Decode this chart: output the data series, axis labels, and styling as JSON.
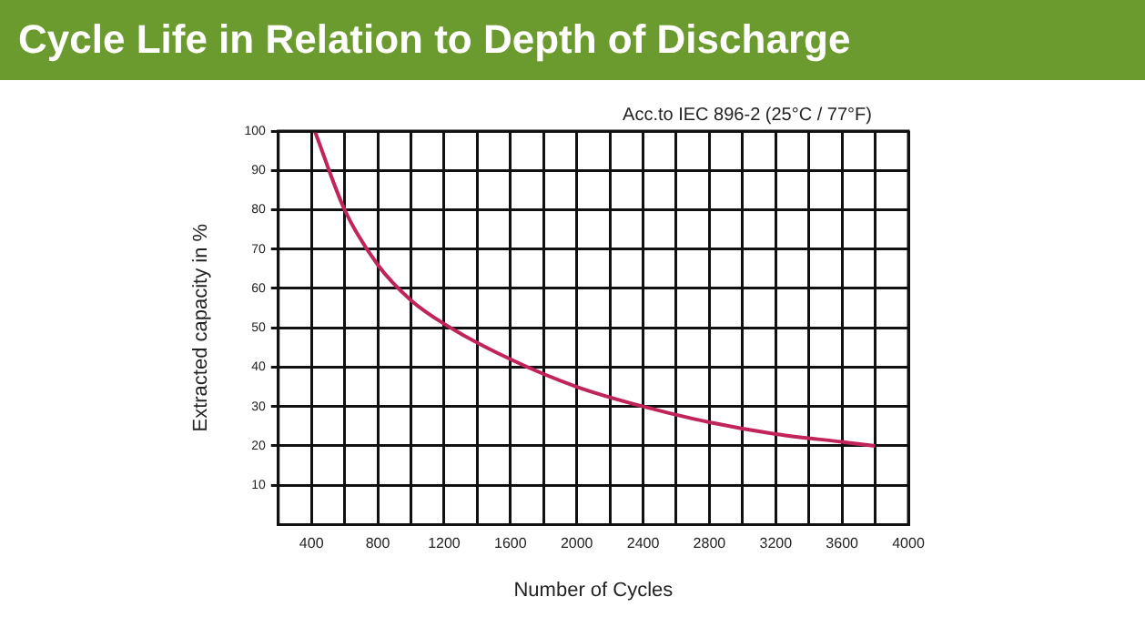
{
  "chart_data": {
    "type": "line",
    "title": "Cycle Life in Relation to Depth of Discharge",
    "xlabel": "Number of Cycles",
    "ylabel": "Extracted capacity in %",
    "annotations": [
      "Acc.to IEC 896-2 (25°C / 77°F)"
    ],
    "x": [
      420,
      600,
      800,
      1000,
      1200,
      1600,
      2000,
      2400,
      2800,
      3200,
      3600,
      3800
    ],
    "series": [
      {
        "color": "#c0245a",
        "values": [
          100,
          80,
          66,
          57,
          51,
          42,
          35,
          30,
          26,
          23,
          21,
          20
        ]
      }
    ],
    "xlim": [
      200,
      4000
    ],
    "xticks": [
      400,
      {
        "value": 600,
        "label": null
      },
      800,
      {
        "value": 1000,
        "label": null
      },
      1200,
      {
        "value": 1400,
        "label": null
      },
      1600,
      {
        "value": 1800,
        "label": null
      },
      2000,
      {
        "value": 2200,
        "label": null
      },
      2400,
      {
        "value": 2600,
        "label": null
      },
      2800,
      {
        "value": 3000,
        "label": null
      },
      3200,
      {
        "value": 3400,
        "label": null
      },
      3600,
      {
        "value": 3800,
        "label": null
      },
      4000
    ],
    "ylim": [
      0,
      100
    ],
    "yticks": [
      10,
      20,
      30,
      40,
      50,
      60,
      70,
      80,
      90,
      100
    ],
    "grid": true,
    "legend": false,
    "marker": "none",
    "line_style": "solid"
  }
}
